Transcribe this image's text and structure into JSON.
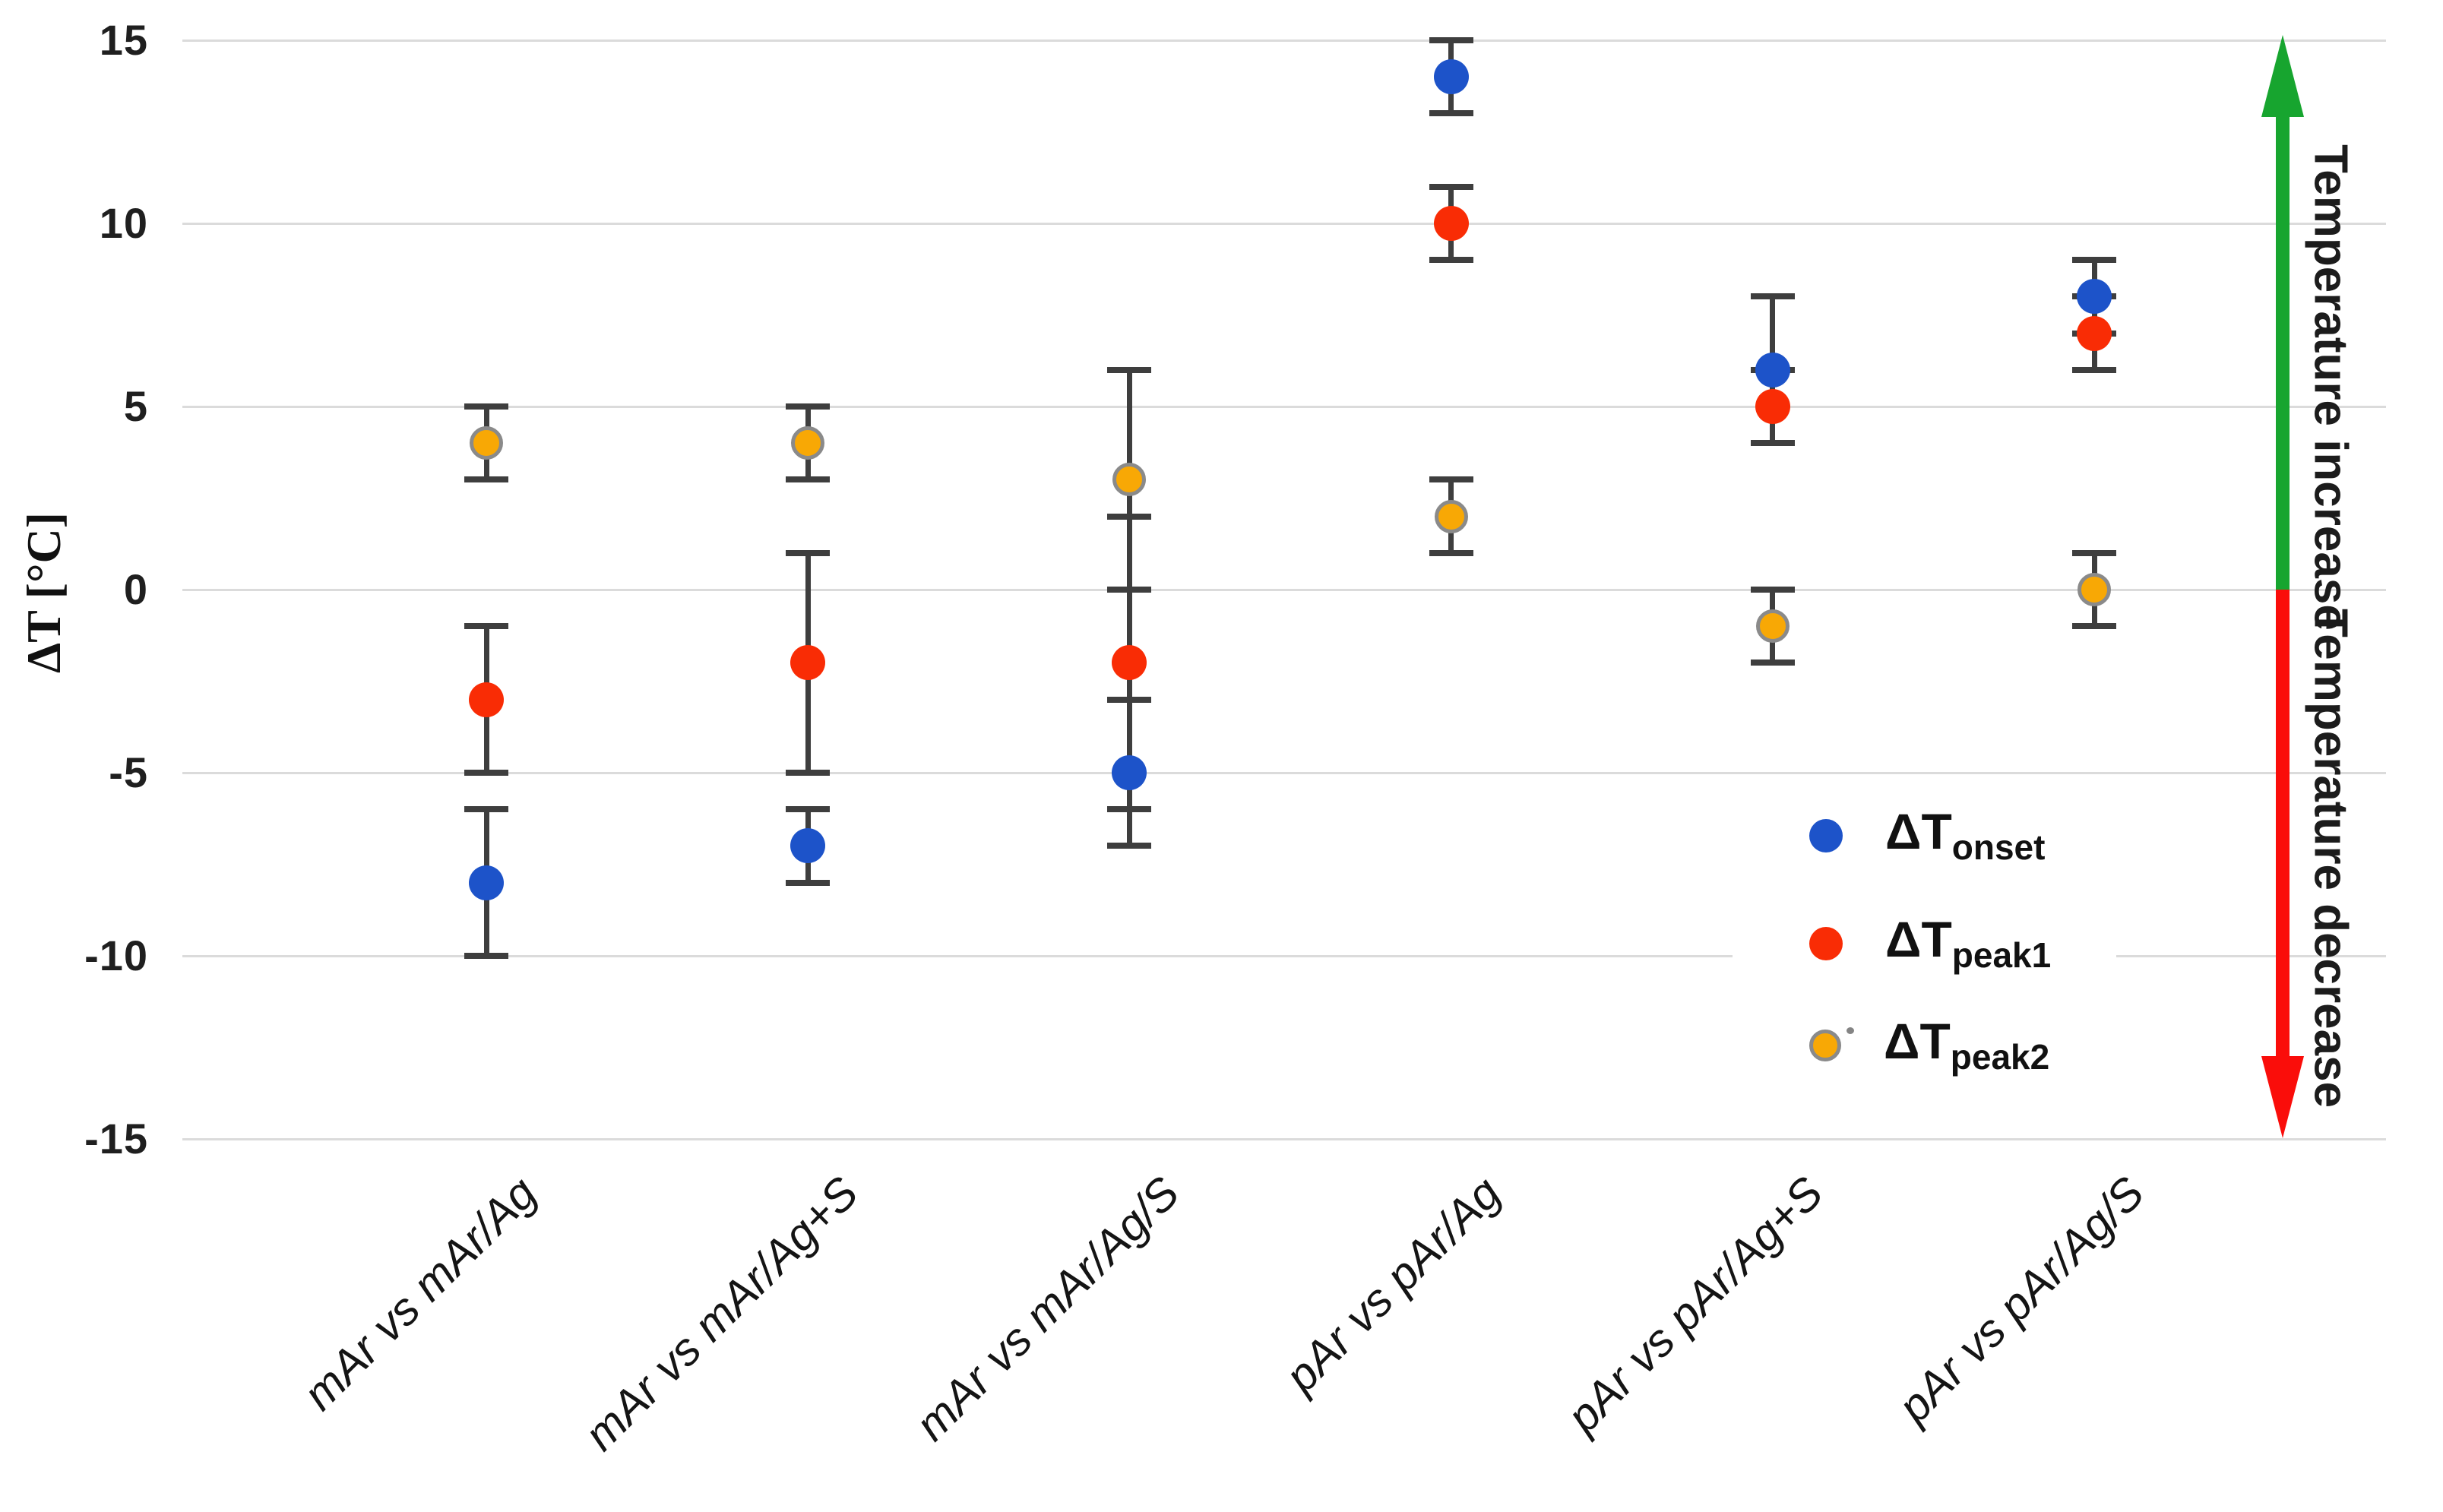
{
  "chart_data": {
    "type": "scatter",
    "title": "",
    "xlabel": "",
    "ylabel": "ΔT [°C]",
    "ylim": [
      -15,
      15
    ],
    "yticks": [
      15,
      10,
      5,
      0,
      -5,
      -10,
      -15
    ],
    "grid": true,
    "background": "#ffffff",
    "gridline_color": "#dbdbdb",
    "errorbar_color": "#3e3e3e",
    "categories": [
      "mAr vs mAr/Ag",
      "mAr vs mAr/Ag+S",
      "mAr vs mAr/Ag/S",
      "pAr vs pAr/Ag",
      "pAr vs pAr/Ag+S",
      "pAr vs pAr/Ag/S"
    ],
    "series": [
      {
        "name": "delta-T-onset",
        "label_main": "ΔT",
        "label_sub": "onset",
        "color": "#1d53c9",
        "values": [
          -8,
          -7,
          -5,
          14,
          6,
          8
        ],
        "errors": [
          2,
          1,
          2,
          1,
          2,
          1
        ]
      },
      {
        "name": "delta-T-peak1",
        "label_main": "ΔT",
        "label_sub": "peak1",
        "color": "#f92c05",
        "values": [
          -3,
          -2,
          -2,
          10,
          5,
          7
        ],
        "errors": [
          2,
          3,
          4,
          1,
          1,
          1
        ]
      },
      {
        "name": "delta-T-peak2",
        "label_main": "ΔT",
        "label_sub": "peak2",
        "color": "#f8a805",
        "marker_border": "#8a8a8a",
        "values": [
          4,
          4,
          3,
          2,
          -1,
          0
        ],
        "errors": [
          1,
          1,
          3,
          1,
          1,
          1
        ]
      }
    ],
    "legend_position": "right-middle",
    "annotations": {
      "increase": {
        "text": "Temperature increase",
        "color": "#17a52f"
      },
      "decrease": {
        "text": "Temperature decrease",
        "color": "#fa0d0a"
      }
    }
  }
}
